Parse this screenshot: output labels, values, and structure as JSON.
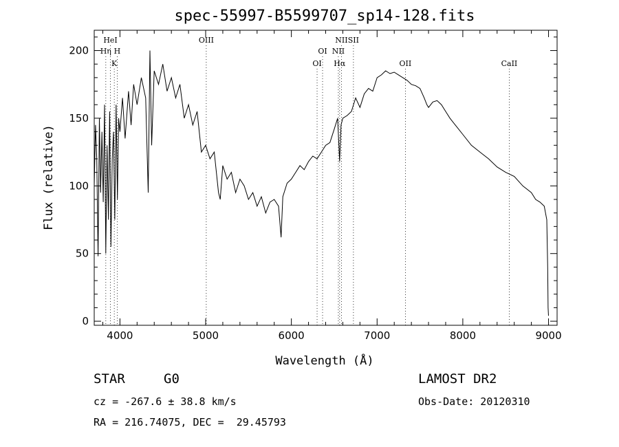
{
  "chart_data": {
    "type": "line",
    "title": "spec-55997-B5599707_sp14-128.fits",
    "xlabel": "Wavelength (Å)",
    "ylabel": "Flux (relative)",
    "xlim": [
      3700,
      9100
    ],
    "ylim": [
      -3,
      215
    ],
    "xticks": [
      4000,
      5000,
      6000,
      7000,
      8000,
      9000
    ],
    "yticks": [
      0,
      50,
      100,
      150,
      200
    ],
    "x_minor_step": 200,
    "y_minor_step": 10,
    "grid": false,
    "legend": "none",
    "spectral_lines": [
      {
        "name": "HeI",
        "wavelength": 3889,
        "row": 1
      },
      {
        "name": "Hη",
        "wavelength": 3835,
        "row": 2
      },
      {
        "name": "H",
        "wavelength": 3968,
        "row": 2
      },
      {
        "name": "K",
        "wavelength": 3934,
        "row": 3
      },
      {
        "name": "OIII",
        "wavelength": 5007,
        "row": 1
      },
      {
        "name": "NII",
        "wavelength": 6584,
        "row": 1
      },
      {
        "name": "SII",
        "wavelength": 6724,
        "row": 1
      },
      {
        "name": "OI",
        "wavelength": 6364,
        "row": 2
      },
      {
        "name": "NII",
        "wavelength": 6548,
        "row": 2
      },
      {
        "name": "OI",
        "wavelength": 6300,
        "row": 3
      },
      {
        "name": "Hα",
        "wavelength": 6563,
        "row": 3
      },
      {
        "name": "OII",
        "wavelength": 7330,
        "row": 3
      },
      {
        "name": "CaII",
        "wavelength": 8542,
        "row": 3
      }
    ],
    "series": [
      {
        "color": "#000000",
        "x": [
          3700,
          3715,
          3730,
          3745,
          3760,
          3775,
          3790,
          3805,
          3820,
          3835,
          3850,
          3865,
          3880,
          3895,
          3910,
          3925,
          3940,
          3955,
          3970,
          3985,
          4000,
          4030,
          4060,
          4100,
          4130,
          4160,
          4200,
          4250,
          4300,
          4330,
          4350,
          4370,
          4400,
          4450,
          4500,
          4550,
          4600,
          4650,
          4700,
          4750,
          4800,
          4850,
          4900,
          4950,
          5000,
          5050,
          5100,
          5150,
          5170,
          5200,
          5250,
          5300,
          5350,
          5400,
          5450,
          5500,
          5550,
          5600,
          5650,
          5700,
          5750,
          5800,
          5850,
          5880,
          5900,
          5950,
          6000,
          6050,
          6100,
          6150,
          6200,
          6250,
          6300,
          6350,
          6400,
          6450,
          6500,
          6540,
          6563,
          6580,
          6600,
          6650,
          6700,
          6750,
          6800,
          6850,
          6900,
          6950,
          7000,
          7050,
          7100,
          7150,
          7200,
          7250,
          7300,
          7350,
          7400,
          7450,
          7500,
          7550,
          7580,
          7600,
          7650,
          7700,
          7750,
          7800,
          7850,
          7900,
          7950,
          8000,
          8100,
          8200,
          8300,
          8400,
          8500,
          8600,
          8700,
          8800,
          8850,
          8900,
          8950,
          8980,
          8990,
          8995,
          9000
        ],
        "values": [
          100,
          145,
          120,
          48,
          150,
          95,
          140,
          88,
          160,
          50,
          130,
          75,
          155,
          55,
          120,
          140,
          75,
          160,
          90,
          150,
          140,
          165,
          135,
          170,
          145,
          175,
          160,
          180,
          165,
          95,
          200,
          130,
          185,
          175,
          190,
          170,
          180,
          165,
          175,
          150,
          160,
          145,
          155,
          125,
          130,
          120,
          125,
          95,
          90,
          115,
          105,
          110,
          95,
          105,
          100,
          90,
          95,
          85,
          92,
          80,
          88,
          90,
          85,
          62,
          92,
          102,
          105,
          110,
          115,
          112,
          118,
          122,
          120,
          125,
          130,
          132,
          142,
          150,
          118,
          145,
          150,
          152,
          155,
          165,
          158,
          168,
          172,
          170,
          180,
          182,
          185,
          183,
          184,
          182,
          180,
          178,
          175,
          174,
          172,
          165,
          160,
          158,
          162,
          163,
          160,
          155,
          150,
          146,
          142,
          138,
          130,
          125,
          120,
          114,
          110,
          107,
          100,
          95,
          90,
          88,
          85,
          75,
          40,
          10,
          4
        ]
      }
    ]
  },
  "footer": {
    "object_class": "STAR",
    "subclass": "G0",
    "survey": "LAMOST DR2",
    "redshift": "cz = -267.6 ± 38.8 km/s",
    "obs_date": "Obs-Date: 20120310",
    "coords": "RA = 216.74075, DEC =  29.45793"
  }
}
